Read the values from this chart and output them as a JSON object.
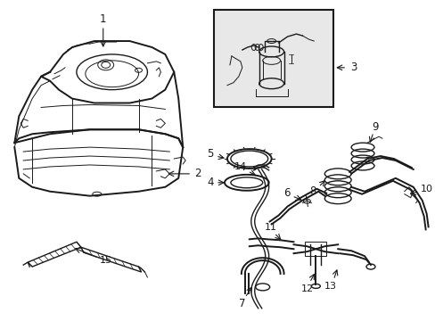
{
  "bg_color": "#ffffff",
  "line_color": "#1a1a1a",
  "figsize": [
    4.89,
    3.6
  ],
  "dpi": 100,
  "inset_bg": "#e8e8e8",
  "label_fs": 8.5
}
